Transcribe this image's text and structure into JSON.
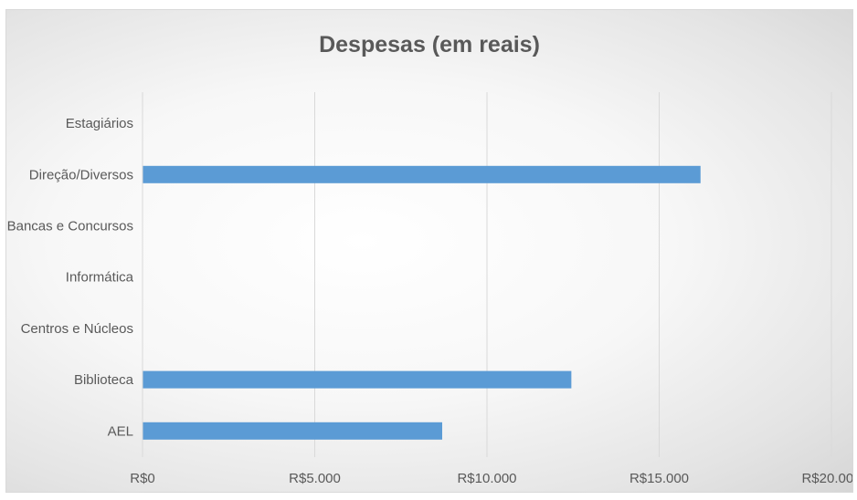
{
  "chart_data": {
    "type": "bar",
    "orientation": "horizontal",
    "title": "Despesas (em reais)",
    "xlabel": "",
    "ylabel": "",
    "categories": [
      "Estagiários",
      "Direção/Diversos",
      "Bancas e Concursos",
      "Informática",
      "Centros e Núcleos",
      "Biblioteca",
      "AEL"
    ],
    "values": [
      0,
      16200,
      0,
      0,
      0,
      12450,
      8700
    ],
    "xlim": [
      0,
      20000
    ],
    "ticks": [
      0,
      5000,
      10000,
      15000,
      20000
    ],
    "tick_labels": [
      "R$0",
      "R$5.000",
      "R$10.000",
      "R$15.000",
      "R$20.000"
    ],
    "grid": "vertical",
    "legend": "none",
    "bar_color": "#5b9bd5",
    "grid_color": "#d9d9d9"
  }
}
